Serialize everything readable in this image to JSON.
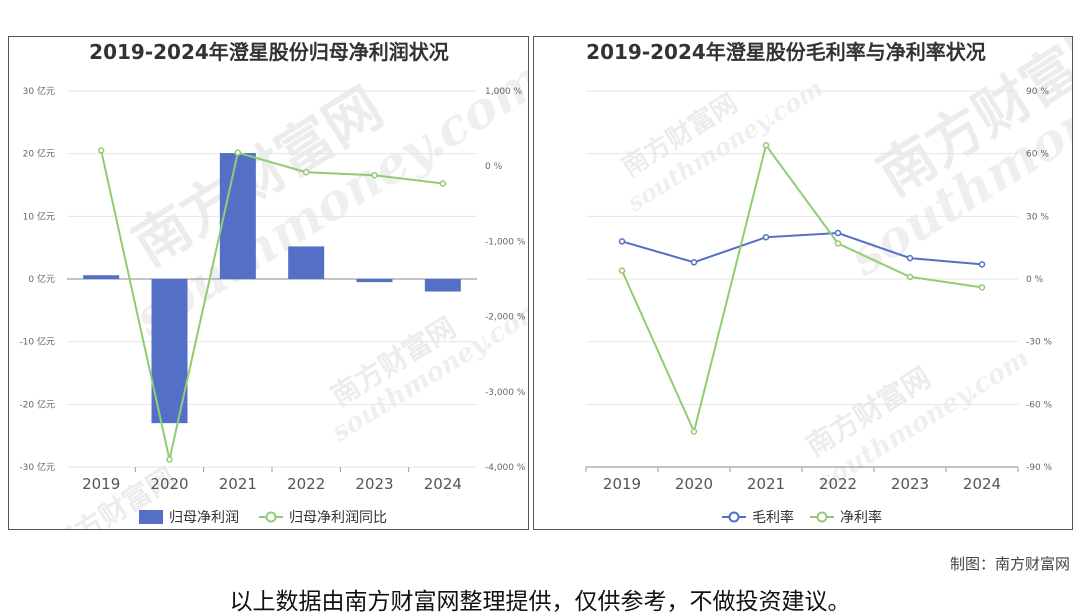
{
  "chart_data": [
    {
      "type": "bar+line",
      "title": "2019-2024年澄星股份归母净利润状况",
      "categories": [
        "2019",
        "2020",
        "2021",
        "2022",
        "2023",
        "2024"
      ],
      "y_left": {
        "ticks": [
          30,
          20,
          10,
          0,
          -10,
          -20,
          -30
        ],
        "tick_labels": [
          "30 亿元",
          "20 亿元",
          "10 亿元",
          "0 亿元",
          "-10 亿元",
          "-20 亿元",
          "-30 亿元"
        ],
        "ylim": [
          -30,
          30
        ]
      },
      "y_right": {
        "ticks": [
          1000,
          0,
          -1000,
          -2000,
          -3000,
          -4000
        ],
        "tick_labels": [
          "1,000 %",
          "0 %",
          "-1,000 %",
          "-2,000 %",
          "-3,000 %",
          "-4,000 %"
        ],
        "ylim": [
          -4000,
          1000
        ]
      },
      "series": [
        {
          "name": "归母净利润",
          "type": "bar",
          "axis": "left",
          "color": "#5470c6",
          "values": [
            0.6,
            -23.0,
            20.1,
            5.2,
            -0.5,
            -2.0
          ]
        },
        {
          "name": "归母净利润同比",
          "type": "line",
          "axis": "right",
          "color": "#91cc75",
          "values": [
            210,
            -3900,
            180,
            -80,
            -120,
            -230
          ]
        }
      ],
      "legend_position": "bottom-center"
    },
    {
      "type": "line",
      "title": "2019-2024年澄星股份毛利率与净利率状况",
      "categories": [
        "2019",
        "2020",
        "2021",
        "2022",
        "2023",
        "2024"
      ],
      "y_right": {
        "ticks": [
          90,
          60,
          30,
          0,
          -30,
          -60,
          -90
        ],
        "tick_labels": [
          "90 %",
          "60 %",
          "30 %",
          "0 %",
          "-30 %",
          "-60 %",
          "-90 %"
        ],
        "ylim": [
          -90,
          90
        ]
      },
      "series": [
        {
          "name": "毛利率",
          "color": "#5470c6",
          "values": [
            18,
            8,
            20,
            22,
            10,
            7
          ]
        },
        {
          "name": "净利率",
          "color": "#91cc75",
          "values": [
            4,
            -73,
            64,
            17,
            1,
            -4
          ]
        }
      ],
      "legend_position": "bottom-center"
    }
  ],
  "watermark": {
    "brand": "南方财富网",
    "site": "southmoney.com"
  },
  "footer": {
    "credit": "制图：南方财富网",
    "disclaimer": "以上数据由南方财富网整理提供，仅供参考，不做投资建议。"
  }
}
